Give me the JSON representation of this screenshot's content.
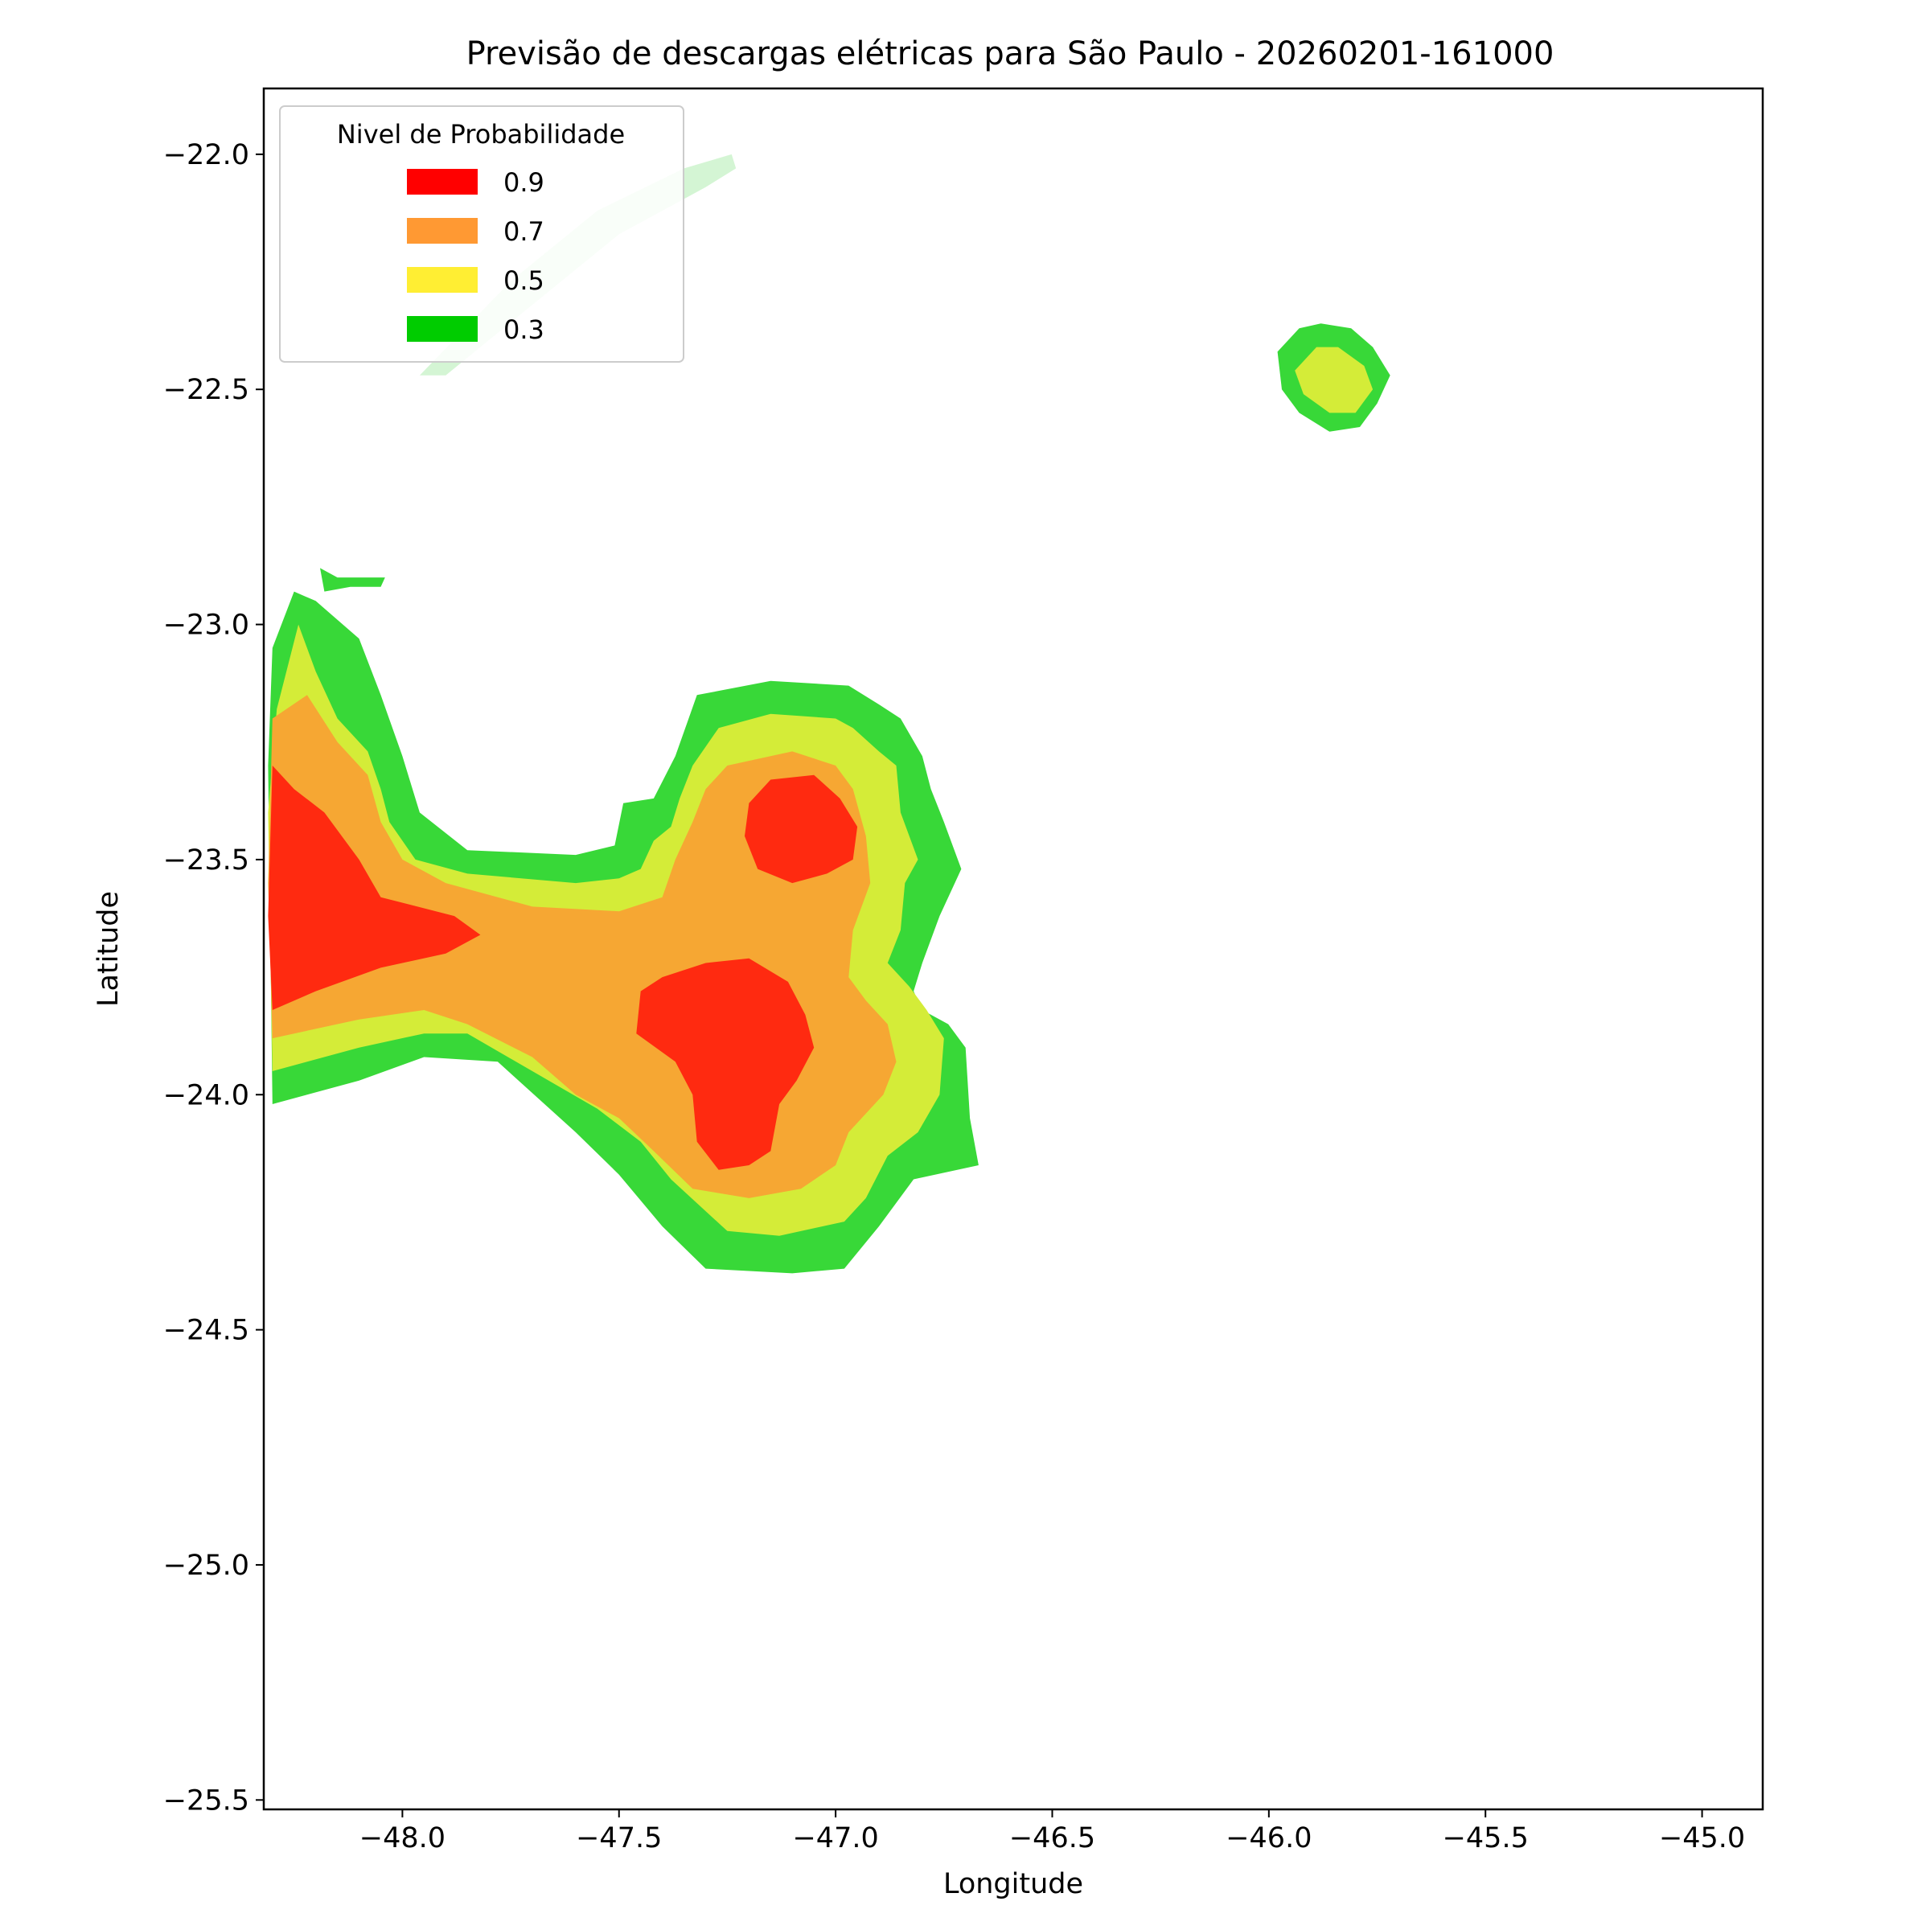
{
  "chart_data": {
    "type": "heatmap",
    "title": "Previsão de descargas elétricas para São Paulo - 20260201-161000",
    "xlabel": "Longitude",
    "ylabel": "Latitude",
    "xlim": [
      -48.32,
      -44.86
    ],
    "ylim": [
      -25.52,
      -21.86
    ],
    "grid": false,
    "x_ticks": [
      {
        "value": -48.0,
        "label": "−48.0"
      },
      {
        "value": -47.5,
        "label": "−47.5"
      },
      {
        "value": -47.0,
        "label": "−47.0"
      },
      {
        "value": -46.5,
        "label": "−46.5"
      },
      {
        "value": -46.0,
        "label": "−46.0"
      },
      {
        "value": -45.5,
        "label": "−45.5"
      },
      {
        "value": -45.0,
        "label": "−45.0"
      }
    ],
    "y_ticks": [
      {
        "value": -22.0,
        "label": "−22.0"
      },
      {
        "value": -22.5,
        "label": "−22.5"
      },
      {
        "value": -23.0,
        "label": "−23.0"
      },
      {
        "value": -23.5,
        "label": "−23.5"
      },
      {
        "value": -24.0,
        "label": "−24.0"
      },
      {
        "value": -24.5,
        "label": "−24.5"
      },
      {
        "value": -25.0,
        "label": "−25.0"
      },
      {
        "value": -25.5,
        "label": "−25.5"
      }
    ],
    "legend": {
      "title": "Nivel de Probabilidade",
      "placement": "top-left",
      "entries": [
        {
          "label": "0.9",
          "color": "#ff0000"
        },
        {
          "label": "0.7",
          "color": "#ff9933"
        },
        {
          "label": "0.5",
          "color": "#ffee33"
        },
        {
          "label": "0.3",
          "color": "#00cc00"
        }
      ]
    },
    "fill_colors": {
      "0.3": "#38d838",
      "0.5": "#d4ec38",
      "0.7": "#f6a733",
      "0.9": "#ff2a10",
      "faint": "#d4f5d4"
    },
    "regions": [
      {
        "level": "faint",
        "points": [
          [
            -47.96,
            -22.47
          ],
          [
            -47.75,
            -22.27
          ],
          [
            -47.55,
            -22.12
          ],
          [
            -47.35,
            -22.03
          ],
          [
            -47.24,
            -22.0
          ],
          [
            -47.23,
            -22.03
          ],
          [
            -47.3,
            -22.07
          ],
          [
            -47.5,
            -22.17
          ],
          [
            -47.7,
            -22.32
          ],
          [
            -47.9,
            -22.47
          ]
        ]
      },
      {
        "level": "0.3",
        "points": [
          [
            -48.31,
            -23.3
          ],
          [
            -48.3,
            -23.05
          ],
          [
            -48.25,
            -22.93
          ],
          [
            -48.2,
            -22.95
          ],
          [
            -48.1,
            -23.03
          ],
          [
            -48.05,
            -23.15
          ],
          [
            -48.0,
            -23.28
          ],
          [
            -47.96,
            -23.4
          ],
          [
            -47.85,
            -23.48
          ],
          [
            -47.6,
            -23.49
          ],
          [
            -47.51,
            -23.47
          ],
          [
            -47.49,
            -23.38
          ],
          [
            -47.42,
            -23.37
          ],
          [
            -47.37,
            -23.28
          ],
          [
            -47.32,
            -23.15
          ],
          [
            -47.15,
            -23.12
          ],
          [
            -46.97,
            -23.13
          ],
          [
            -46.9,
            -23.17
          ],
          [
            -46.85,
            -23.2
          ],
          [
            -46.8,
            -23.28
          ],
          [
            -46.78,
            -23.35
          ],
          [
            -46.75,
            -23.42
          ],
          [
            -46.71,
            -23.52
          ],
          [
            -46.76,
            -23.62
          ],
          [
            -46.8,
            -23.72
          ],
          [
            -46.82,
            -23.78
          ],
          [
            -46.8,
            -23.82
          ],
          [
            -46.74,
            -23.85
          ],
          [
            -46.7,
            -23.9
          ],
          [
            -46.69,
            -24.05
          ],
          [
            -46.67,
            -24.15
          ],
          [
            -46.82,
            -24.18
          ],
          [
            -46.9,
            -24.28
          ],
          [
            -46.98,
            -24.37
          ],
          [
            -47.1,
            -24.38
          ],
          [
            -47.3,
            -24.37
          ],
          [
            -47.4,
            -24.28
          ],
          [
            -47.5,
            -24.17
          ],
          [
            -47.6,
            -24.08
          ],
          [
            -47.78,
            -23.93
          ],
          [
            -47.95,
            -23.92
          ],
          [
            -48.1,
            -23.97
          ],
          [
            -48.3,
            -24.02
          ]
        ]
      },
      {
        "level": "0.3",
        "points": [
          [
            -48.19,
            -22.88
          ],
          [
            -48.18,
            -22.93
          ],
          [
            -48.12,
            -22.92
          ],
          [
            -48.05,
            -22.92
          ],
          [
            -48.04,
            -22.9
          ],
          [
            -48.15,
            -22.9
          ]
        ]
      },
      {
        "level": "0.3",
        "points": [
          [
            -45.93,
            -22.37
          ],
          [
            -45.88,
            -22.36
          ],
          [
            -45.81,
            -22.37
          ],
          [
            -45.76,
            -22.41
          ],
          [
            -45.72,
            -22.47
          ],
          [
            -45.75,
            -22.53
          ],
          [
            -45.79,
            -22.58
          ],
          [
            -45.86,
            -22.59
          ],
          [
            -45.93,
            -22.55
          ],
          [
            -45.97,
            -22.5
          ],
          [
            -45.98,
            -22.42
          ]
        ]
      },
      {
        "level": "0.5",
        "points": [
          [
            -48.31,
            -23.4
          ],
          [
            -48.29,
            -23.18
          ],
          [
            -48.24,
            -23.0
          ],
          [
            -48.2,
            -23.1
          ],
          [
            -48.15,
            -23.2
          ],
          [
            -48.08,
            -23.27
          ],
          [
            -48.05,
            -23.35
          ],
          [
            -48.03,
            -23.42
          ],
          [
            -47.97,
            -23.5
          ],
          [
            -47.85,
            -23.53
          ],
          [
            -47.6,
            -23.55
          ],
          [
            -47.5,
            -23.54
          ],
          [
            -47.45,
            -23.52
          ],
          [
            -47.42,
            -23.46
          ],
          [
            -47.38,
            -23.43
          ],
          [
            -47.36,
            -23.37
          ],
          [
            -47.33,
            -23.3
          ],
          [
            -47.27,
            -23.22
          ],
          [
            -47.15,
            -23.19
          ],
          [
            -47.0,
            -23.2
          ],
          [
            -46.96,
            -23.22
          ],
          [
            -46.9,
            -23.27
          ],
          [
            -46.86,
            -23.3
          ],
          [
            -46.85,
            -23.4
          ],
          [
            -46.81,
            -23.5
          ],
          [
            -46.84,
            -23.55
          ],
          [
            -46.85,
            -23.65
          ],
          [
            -46.88,
            -23.72
          ],
          [
            -46.83,
            -23.77
          ],
          [
            -46.79,
            -23.82
          ],
          [
            -46.75,
            -23.88
          ],
          [
            -46.76,
            -24.0
          ],
          [
            -46.81,
            -24.08
          ],
          [
            -46.88,
            -24.13
          ],
          [
            -46.93,
            -24.22
          ],
          [
            -46.98,
            -24.27
          ],
          [
            -47.13,
            -24.3
          ],
          [
            -47.25,
            -24.29
          ],
          [
            -47.38,
            -24.18
          ],
          [
            -47.45,
            -24.1
          ],
          [
            -47.55,
            -24.03
          ],
          [
            -47.7,
            -23.95
          ],
          [
            -47.85,
            -23.87
          ],
          [
            -47.95,
            -23.87
          ],
          [
            -48.1,
            -23.9
          ],
          [
            -48.3,
            -23.95
          ]
        ]
      },
      {
        "level": "0.5",
        "points": [
          [
            -45.89,
            -22.41
          ],
          [
            -45.84,
            -22.41
          ],
          [
            -45.78,
            -22.45
          ],
          [
            -45.76,
            -22.5
          ],
          [
            -45.8,
            -22.55
          ],
          [
            -45.86,
            -22.55
          ],
          [
            -45.92,
            -22.51
          ],
          [
            -45.94,
            -22.46
          ]
        ]
      },
      {
        "level": "0.7",
        "points": [
          [
            -48.31,
            -23.55
          ],
          [
            -48.3,
            -23.2
          ],
          [
            -48.22,
            -23.15
          ],
          [
            -48.15,
            -23.25
          ],
          [
            -48.08,
            -23.32
          ],
          [
            -48.05,
            -23.42
          ],
          [
            -48.0,
            -23.5
          ],
          [
            -47.9,
            -23.55
          ],
          [
            -47.7,
            -23.6
          ],
          [
            -47.5,
            -23.61
          ],
          [
            -47.4,
            -23.58
          ],
          [
            -47.37,
            -23.5
          ],
          [
            -47.33,
            -23.42
          ],
          [
            -47.3,
            -23.35
          ],
          [
            -47.25,
            -23.3
          ],
          [
            -47.1,
            -23.27
          ],
          [
            -47.0,
            -23.3
          ],
          [
            -46.96,
            -23.35
          ],
          [
            -46.93,
            -23.45
          ],
          [
            -46.92,
            -23.55
          ],
          [
            -46.96,
            -23.65
          ],
          [
            -46.97,
            -23.75
          ],
          [
            -46.93,
            -23.8
          ],
          [
            -46.88,
            -23.85
          ],
          [
            -46.86,
            -23.93
          ],
          [
            -46.89,
            -24.0
          ],
          [
            -46.97,
            -24.08
          ],
          [
            -47.0,
            -24.15
          ],
          [
            -47.08,
            -24.2
          ],
          [
            -47.2,
            -24.22
          ],
          [
            -47.33,
            -24.2
          ],
          [
            -47.42,
            -24.12
          ],
          [
            -47.5,
            -24.05
          ],
          [
            -47.6,
            -24.0
          ],
          [
            -47.7,
            -23.92
          ],
          [
            -47.85,
            -23.85
          ],
          [
            -47.95,
            -23.82
          ],
          [
            -48.1,
            -23.84
          ],
          [
            -48.3,
            -23.88
          ]
        ]
      },
      {
        "level": "0.9",
        "points": [
          [
            -48.31,
            -23.62
          ],
          [
            -48.3,
            -23.3
          ],
          [
            -48.25,
            -23.35
          ],
          [
            -48.18,
            -23.4
          ],
          [
            -48.1,
            -23.5
          ],
          [
            -48.05,
            -23.58
          ],
          [
            -47.88,
            -23.62
          ],
          [
            -47.82,
            -23.66
          ],
          [
            -47.9,
            -23.7
          ],
          [
            -48.05,
            -23.73
          ],
          [
            -48.2,
            -23.78
          ],
          [
            -48.3,
            -23.82
          ]
        ]
      },
      {
        "level": "0.9",
        "points": [
          [
            -47.15,
            -23.33
          ],
          [
            -47.05,
            -23.32
          ],
          [
            -46.99,
            -23.37
          ],
          [
            -46.95,
            -23.43
          ],
          [
            -46.96,
            -23.5
          ],
          [
            -47.02,
            -23.53
          ],
          [
            -47.1,
            -23.55
          ],
          [
            -47.18,
            -23.52
          ],
          [
            -47.21,
            -23.45
          ],
          [
            -47.2,
            -23.38
          ]
        ]
      },
      {
        "level": "0.9",
        "points": [
          [
            -47.3,
            -23.72
          ],
          [
            -47.2,
            -23.71
          ],
          [
            -47.11,
            -23.76
          ],
          [
            -47.07,
            -23.83
          ],
          [
            -47.05,
            -23.9
          ],
          [
            -47.09,
            -23.97
          ],
          [
            -47.13,
            -24.02
          ],
          [
            -47.15,
            -24.12
          ],
          [
            -47.2,
            -24.15
          ],
          [
            -47.27,
            -24.16
          ],
          [
            -47.32,
            -24.1
          ],
          [
            -47.33,
            -24.0
          ],
          [
            -47.37,
            -23.93
          ],
          [
            -47.46,
            -23.87
          ],
          [
            -47.45,
            -23.78
          ],
          [
            -47.4,
            -23.75
          ]
        ]
      }
    ]
  }
}
